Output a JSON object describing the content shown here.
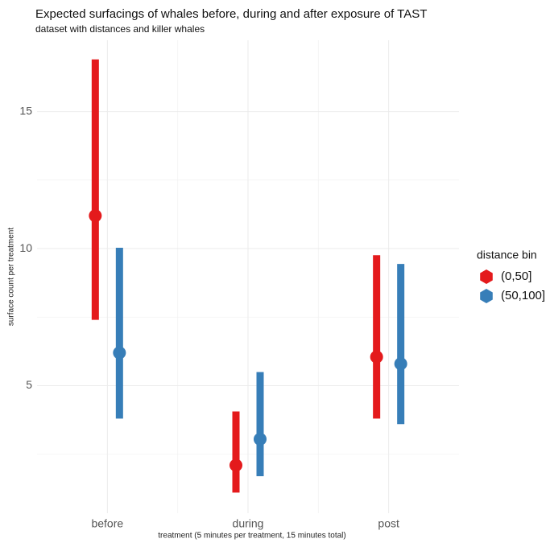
{
  "chart_data": {
    "type": "pointrange",
    "title": "Expected surfacings of whales before, during and after exposure of TAST",
    "subtitle": "dataset with distances and killer whales",
    "x_label": "treatment (5 minutes per treatment, 15 minutes total)",
    "y_label": "surface count per treatment",
    "categories": [
      "before",
      "during",
      "post"
    ],
    "legend_title": "distance bin",
    "series": [
      {
        "name": "(0,50]",
        "color": "#e41a1c",
        "values": [
          11.2,
          2.1,
          6.05
        ],
        "lower": [
          7.4,
          1.1,
          3.8
        ],
        "upper": [
          16.9,
          4.06,
          9.76
        ]
      },
      {
        "name": "(50,100]",
        "color": "#377eb8",
        "values": [
          6.2,
          3.05,
          5.8
        ],
        "lower": [
          3.8,
          1.7,
          3.6
        ],
        "upper": [
          10.03,
          5.5,
          9.44
        ]
      }
    ],
    "ylim": [
      0.35,
      17.6
    ],
    "yticks": [
      5,
      10,
      15
    ],
    "minor_yticks": [
      2.5,
      7.5,
      12.5
    ],
    "grid": true
  }
}
